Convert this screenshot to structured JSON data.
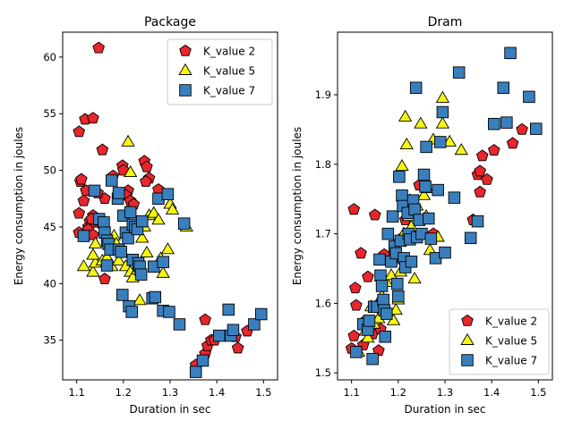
{
  "chart_data": [
    {
      "type": "scatter",
      "title": "Package",
      "xlabel": "Duration in sec",
      "ylabel": "Energy consumption in joules",
      "xlim": [
        1.07,
        1.53
      ],
      "ylim": [
        31.5,
        62.2
      ],
      "xticks": [
        "1.1",
        "1.2",
        "1.3",
        "1.4",
        "1.5"
      ],
      "yticks": [
        "35",
        "40",
        "45",
        "50",
        "55",
        "60"
      ],
      "legend_position": "upper right",
      "grid": false,
      "series": [
        {
          "name": "K_value 2",
          "marker": "pentagon",
          "color": "#e8262b",
          "points": [
            [
              1.147,
              60.8
            ],
            [
              1.118,
              54.5
            ],
            [
              1.135,
              54.6
            ],
            [
              1.105,
              53.4
            ],
            [
              1.155,
              51.8
            ],
            [
              1.108,
              49.0
            ],
            [
              1.11,
              49.2
            ],
            [
              1.16,
              47.5
            ],
            [
              1.115,
              47.3
            ],
            [
              1.12,
              48.2
            ],
            [
              1.128,
              45.5
            ],
            [
              1.135,
              46.0
            ],
            [
              1.125,
              45.0
            ],
            [
              1.105,
              46.2
            ],
            [
              1.125,
              44.8
            ],
            [
              1.14,
              45.4
            ],
            [
              1.145,
              48.0
            ],
            [
              1.132,
              45.7
            ],
            [
              1.105,
              44.5
            ],
            [
              1.135,
              44.3
            ],
            [
              1.178,
              49.5
            ],
            [
              1.198,
              50.4
            ],
            [
              1.2,
              50.0
            ],
            [
              1.21,
              48.2
            ],
            [
              1.205,
              47.8
            ],
            [
              1.215,
              47.3
            ],
            [
              1.222,
              47.0
            ],
            [
              1.245,
              50.8
            ],
            [
              1.25,
              50.3
            ],
            [
              1.255,
              49.3
            ],
            [
              1.248,
              49.0
            ],
            [
              1.275,
              48.3
            ],
            [
              1.16,
              40.4
            ],
            [
              1.375,
              36.8
            ],
            [
              1.375,
              33.8
            ],
            [
              1.38,
              34.5
            ],
            [
              1.388,
              35.0
            ],
            [
              1.395,
              35.0
            ],
            [
              1.355,
              32.8
            ],
            [
              1.44,
              35.3
            ],
            [
              1.445,
              34.3
            ],
            [
              1.465,
              35.8
            ]
          ]
        },
        {
          "name": "K_value 5",
          "marker": "triangle",
          "color": "#f5f514",
          "points": [
            [
              1.115,
              41.5
            ],
            [
              1.135,
              41.0
            ],
            [
              1.14,
              41.8
            ],
            [
              1.135,
              42.5
            ],
            [
              1.14,
              43.5
            ],
            [
              1.155,
              42.0
            ],
            [
              1.165,
              42.3
            ],
            [
              1.175,
              41.5
            ],
            [
              1.15,
              45.5
            ],
            [
              1.18,
              44.2
            ],
            [
              1.185,
              43.5
            ],
            [
              1.19,
              42.0
            ],
            [
              1.205,
              41.5
            ],
            [
              1.21,
              52.5
            ],
            [
              1.215,
              49.8
            ],
            [
              1.215,
              41.0
            ],
            [
              1.225,
              42.0
            ],
            [
              1.22,
              40.5
            ],
            [
              1.23,
              41.2
            ],
            [
              1.235,
              38.5
            ],
            [
              1.24,
              44.0
            ],
            [
              1.245,
              45.0
            ],
            [
              1.25,
              42.7
            ],
            [
              1.255,
              46.0
            ],
            [
              1.265,
              46.2
            ],
            [
              1.275,
              45.6
            ],
            [
              1.28,
              42.2
            ],
            [
              1.285,
              40.9
            ],
            [
              1.295,
              43.0
            ],
            [
              1.3,
              47.0
            ],
            [
              1.305,
              46.5
            ],
            [
              1.335,
              45.0
            ]
          ]
        },
        {
          "name": "K_value 7",
          "marker": "square",
          "color": "#3a7fbd",
          "points": [
            [
              1.115,
              44.2
            ],
            [
              1.138,
              48.2
            ],
            [
              1.148,
              45.7
            ],
            [
              1.158,
              45.4
            ],
            [
              1.16,
              44.5
            ],
            [
              1.165,
              43.8
            ],
            [
              1.168,
              43.5
            ],
            [
              1.172,
              43.0
            ],
            [
              1.165,
              41.6
            ],
            [
              1.175,
              49.1
            ],
            [
              1.188,
              47.5
            ],
            [
              1.19,
              48.0
            ],
            [
              1.19,
              43.0
            ],
            [
              1.195,
              42.8
            ],
            [
              1.198,
              39.0
            ],
            [
              1.2,
              46.0
            ],
            [
              1.205,
              44.5
            ],
            [
              1.21,
              44.0
            ],
            [
              1.215,
              46.3
            ],
            [
              1.22,
              45.2
            ],
            [
              1.22,
              42.1
            ],
            [
              1.225,
              45.0
            ],
            [
              1.23,
              44.8
            ],
            [
              1.232,
              41.8
            ],
            [
              1.235,
              41.5
            ],
            [
              1.238,
              40.8
            ],
            [
              1.24,
              45.5
            ],
            [
              1.212,
              38.0
            ],
            [
              1.218,
              37.5
            ],
            [
              1.262,
              38.7
            ],
            [
              1.268,
              38.8
            ],
            [
              1.265,
              41.5
            ],
            [
              1.275,
              47.5
            ],
            [
              1.285,
              41.9
            ],
            [
              1.285,
              37.6
            ],
            [
              1.295,
              47.9
            ],
            [
              1.298,
              37.5
            ],
            [
              1.32,
              36.4
            ],
            [
              1.33,
              45.3
            ],
            [
              1.355,
              32.2
            ],
            [
              1.37,
              33.2
            ],
            [
              1.405,
              35.4
            ],
            [
              1.425,
              37.7
            ],
            [
              1.43,
              35.4
            ],
            [
              1.435,
              35.9
            ],
            [
              1.48,
              36.4
            ],
            [
              1.495,
              37.3
            ]
          ]
        }
      ]
    },
    {
      "type": "scatter",
      "title": "Dram",
      "xlabel": "Duration in sec",
      "ylabel": "Energy consumption in joules",
      "xlim": [
        1.07,
        1.53
      ],
      "ylim": [
        1.49,
        1.99
      ],
      "xticks": [
        "1.1",
        "1.2",
        "1.3",
        "1.4",
        "1.5"
      ],
      "yticks": [
        "1.5",
        "1.6",
        "1.7",
        "1.8",
        "1.9"
      ],
      "legend_position": "lower right",
      "grid": false,
      "series": [
        {
          "name": "K_value 2",
          "marker": "pentagon",
          "color": "#e8262b",
          "points": [
            [
              1.105,
              1.735
            ],
            [
              1.12,
              1.672
            ],
            [
              1.15,
              1.727
            ],
            [
              1.108,
              1.622
            ],
            [
              1.135,
              1.638
            ],
            [
              1.11,
              1.597
            ],
            [
              1.105,
              1.553
            ],
            [
              1.13,
              1.575
            ],
            [
              1.125,
              1.54
            ],
            [
              1.145,
              1.556
            ],
            [
              1.158,
              1.532
            ],
            [
              1.162,
              1.563
            ],
            [
              1.165,
              1.625
            ],
            [
              1.17,
              1.67
            ],
            [
              1.19,
              1.665
            ],
            [
              1.195,
              1.685
            ],
            [
              1.21,
              1.695
            ],
            [
              1.215,
              1.72
            ],
            [
              1.245,
              1.77
            ],
            [
              1.275,
              1.7
            ],
            [
              1.36,
              1.72
            ],
            [
              1.37,
              1.785
            ],
            [
              1.375,
              1.79
            ],
            [
              1.375,
              1.76
            ],
            [
              1.38,
              1.812
            ],
            [
              1.39,
              1.778
            ],
            [
              1.405,
              1.82
            ],
            [
              1.445,
              1.83
            ],
            [
              1.465,
              1.85
            ],
            [
              1.1,
              1.535
            ]
          ]
        },
        {
          "name": "K_value 5",
          "marker": "triangle",
          "color": "#f5f514",
          "points": [
            [
              1.115,
              1.53
            ],
            [
              1.13,
              1.56
            ],
            [
              1.135,
              1.55
            ],
            [
              1.142,
              1.595
            ],
            [
              1.148,
              1.57
            ],
            [
              1.158,
              1.578
            ],
            [
              1.165,
              1.61
            ],
            [
              1.168,
              1.592
            ],
            [
              1.175,
              1.63
            ],
            [
              1.185,
              1.64
            ],
            [
              1.19,
              1.575
            ],
            [
              1.195,
              1.59
            ],
            [
              1.2,
              1.605
            ],
            [
              1.205,
              1.645
            ],
            [
              1.208,
              1.797
            ],
            [
              1.212,
              1.7
            ],
            [
              1.215,
              1.868
            ],
            [
              1.218,
              1.828
            ],
            [
              1.222,
              1.725
            ],
            [
              1.225,
              1.748
            ],
            [
              1.228,
              1.71
            ],
            [
              1.232,
              1.698
            ],
            [
              1.235,
              1.635
            ],
            [
              1.24,
              1.74
            ],
            [
              1.248,
              1.858
            ],
            [
              1.255,
              1.755
            ],
            [
              1.262,
              1.765
            ],
            [
              1.268,
              1.676
            ],
            [
              1.275,
              1.835
            ],
            [
              1.285,
              1.695
            ],
            [
              1.295,
              1.895
            ],
            [
              1.295,
              1.858
            ],
            [
              1.31,
              1.832
            ],
            [
              1.335,
              1.82
            ],
            [
              1.26,
              1.725
            ]
          ]
        },
        {
          "name": "K_value 7",
          "marker": "square",
          "color": "#3a7fbd",
          "points": [
            [
              1.11,
              1.53
            ],
            [
              1.125,
              1.57
            ],
            [
              1.135,
              1.562
            ],
            [
              1.138,
              1.575
            ],
            [
              1.145,
              1.52
            ],
            [
              1.148,
              1.595
            ],
            [
              1.155,
              1.595
            ],
            [
              1.16,
              1.663
            ],
            [
              1.162,
              1.64
            ],
            [
              1.165,
              1.625
            ],
            [
              1.168,
              1.605
            ],
            [
              1.17,
              1.59
            ],
            [
              1.172,
              1.552
            ],
            [
              1.175,
              1.585
            ],
            [
              1.178,
              1.7
            ],
            [
              1.185,
              1.66
            ],
            [
              1.188,
              1.725
            ],
            [
              1.192,
              1.682
            ],
            [
              1.195,
              1.672
            ],
            [
              1.198,
              1.628
            ],
            [
              1.2,
              1.61
            ],
            [
              1.202,
              1.782
            ],
            [
              1.205,
              1.69
            ],
            [
              1.208,
              1.755
            ],
            [
              1.21,
              1.74
            ],
            [
              1.212,
              1.665
            ],
            [
              1.215,
              1.652
            ],
            [
              1.22,
              1.73
            ],
            [
              1.222,
              1.7
            ],
            [
              1.225,
              1.692
            ],
            [
              1.228,
              1.66
            ],
            [
              1.232,
              1.748
            ],
            [
              1.235,
              1.735
            ],
            [
              1.238,
              1.91
            ],
            [
              1.24,
              1.695
            ],
            [
              1.245,
              1.72
            ],
            [
              1.25,
              1.7
            ],
            [
              1.255,
              1.785
            ],
            [
              1.258,
              1.768
            ],
            [
              1.26,
              1.825
            ],
            [
              1.265,
              1.722
            ],
            [
              1.27,
              1.693
            ],
            [
              1.28,
              1.665
            ],
            [
              1.285,
              1.763
            ],
            [
              1.29,
              1.832
            ],
            [
              1.295,
              1.875
            ],
            [
              1.3,
              1.673
            ],
            [
              1.32,
              1.752
            ],
            [
              1.33,
              1.932
            ],
            [
              1.355,
              1.694
            ],
            [
              1.37,
              1.718
            ],
            [
              1.405,
              1.858
            ],
            [
              1.425,
              1.91
            ],
            [
              1.432,
              1.86
            ],
            [
              1.44,
              1.96
            ],
            [
              1.48,
              1.897
            ],
            [
              1.495,
              1.851
            ]
          ]
        }
      ]
    }
  ]
}
